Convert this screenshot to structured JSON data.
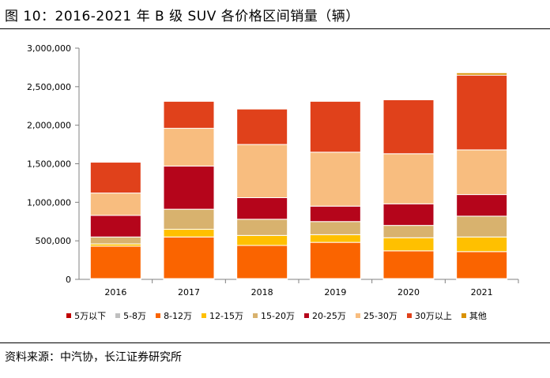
{
  "header": {
    "title": "图 10：2016-2021 年 B 级 SUV 各价格区间销量（辆）"
  },
  "footer": {
    "source": "资料来源：中汽协，长江证券研究所"
  },
  "chart_data": {
    "type": "bar",
    "stacked": true,
    "title": "2016-2021 年 B 级 SUV 各价格区间销量（辆）",
    "xlabel": "",
    "ylabel": "",
    "ylim": [
      0,
      3000000
    ],
    "yticks": [
      "0",
      "500,000",
      "1,000,000",
      "1,500,000",
      "2,000,000",
      "2,500,000",
      "3,000,000"
    ],
    "ytick_values": [
      0,
      500000,
      1000000,
      1500000,
      2000000,
      2500000,
      3000000
    ],
    "categories": [
      "2016",
      "2017",
      "2018",
      "2019",
      "2020",
      "2021"
    ],
    "grid": false,
    "legend_position": "bottom",
    "series": [
      {
        "name": "5万以下",
        "color": "#c00000",
        "values": [
          0,
          0,
          0,
          0,
          0,
          0
        ]
      },
      {
        "name": "5-8万",
        "color": "#bfbfbf",
        "values": [
          10000,
          10000,
          10000,
          10000,
          10000,
          10000
        ]
      },
      {
        "name": "8-12万",
        "color": "#fa6400",
        "values": [
          420000,
          540000,
          430000,
          470000,
          360000,
          350000
        ]
      },
      {
        "name": "12-15万",
        "color": "#ffc000",
        "values": [
          30000,
          100000,
          130000,
          100000,
          170000,
          190000
        ]
      },
      {
        "name": "15-20万",
        "color": "#d8b26e",
        "values": [
          90000,
          260000,
          210000,
          170000,
          160000,
          270000
        ]
      },
      {
        "name": "20-25万",
        "color": "#b5051b",
        "values": [
          280000,
          560000,
          280000,
          200000,
          280000,
          280000
        ]
      },
      {
        "name": "25-30万",
        "color": "#f8bd7f",
        "values": [
          290000,
          490000,
          690000,
          700000,
          650000,
          580000
        ]
      },
      {
        "name": "30万以上",
        "color": "#e0411b",
        "values": [
          400000,
          350000,
          460000,
          660000,
          700000,
          970000
        ]
      },
      {
        "name": "其他",
        "color": "#d99100",
        "values": [
          0,
          0,
          0,
          0,
          0,
          30000
        ]
      }
    ]
  }
}
